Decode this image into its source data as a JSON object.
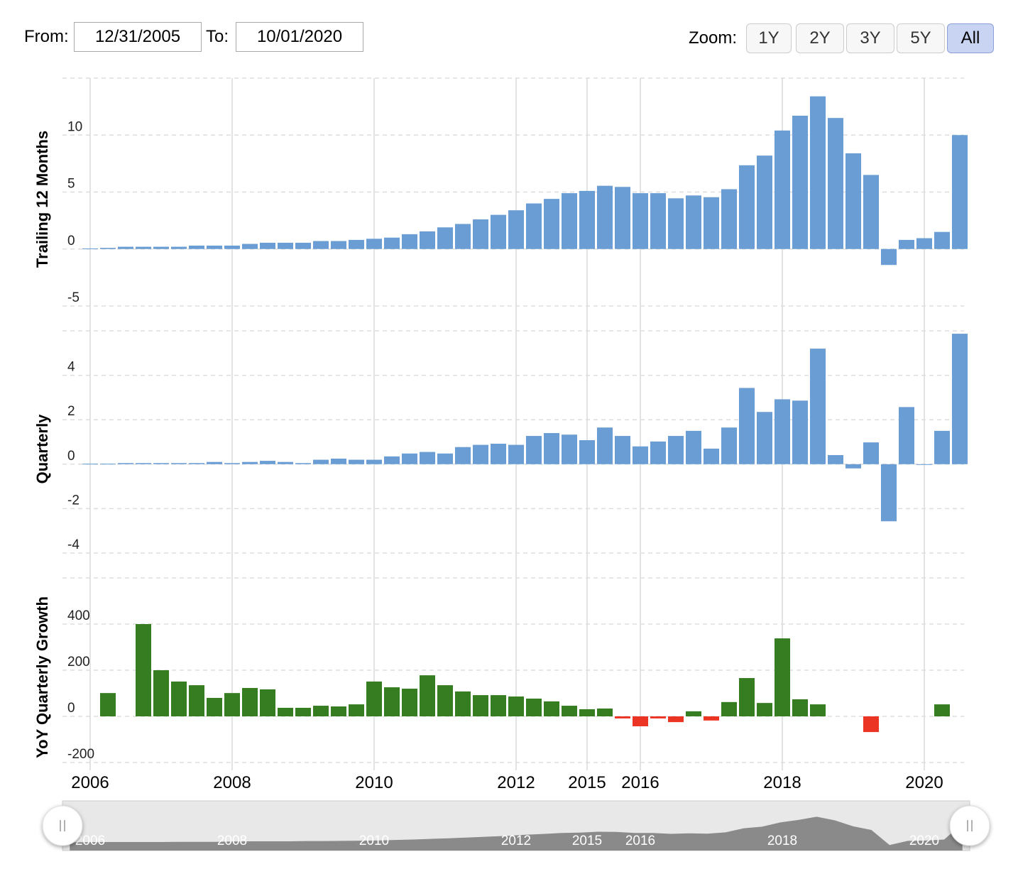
{
  "controls": {
    "from_label": "From:",
    "from": "12/31/2005",
    "to_label": "To:",
    "to": "10/01/2020",
    "zoom_label": "Zoom:",
    "zoom": [
      "1Y",
      "2Y",
      "3Y",
      "5Y",
      "All"
    ],
    "zoom_selected": "All"
  },
  "chart_data": [
    {
      "type": "bar",
      "ylabel": "Trailing 12 Months",
      "color": "#6a9dd3",
      "ylim": [
        -5,
        15
      ],
      "yticks": [
        -5,
        0,
        5,
        10
      ],
      "grid": true,
      "values": [
        0.05,
        0.1,
        0.2,
        0.2,
        0.2,
        0.2,
        0.3,
        0.3,
        0.3,
        0.45,
        0.55,
        0.55,
        0.55,
        0.7,
        0.7,
        0.8,
        0.9,
        1.0,
        1.3,
        1.55,
        1.9,
        2.2,
        2.6,
        3.0,
        3.4,
        4.0,
        4.4,
        4.9,
        5.1,
        5.55,
        5.45,
        4.9,
        4.9,
        4.45,
        4.7,
        4.55,
        5.25,
        7.35,
        8.2,
        10.4,
        11.7,
        13.4,
        11.5,
        8.4,
        6.5,
        -1.4,
        0.8,
        0.95,
        1.5,
        10.0
      ]
    },
    {
      "type": "bar",
      "ylabel": "Quarterly",
      "color": "#6a9dd3",
      "ylim": [
        -4,
        6
      ],
      "yticks": [
        -4,
        -2,
        0,
        2,
        4
      ],
      "grid": true,
      "values": [
        0.02,
        0.02,
        0.05,
        0.05,
        0.05,
        0.05,
        0.05,
        0.1,
        0.05,
        0.1,
        0.15,
        0.1,
        0.05,
        0.2,
        0.25,
        0.2,
        0.2,
        0.35,
        0.48,
        0.55,
        0.48,
        0.77,
        0.87,
        0.92,
        0.87,
        1.27,
        1.4,
        1.33,
        1.08,
        1.65,
        1.27,
        0.8,
        1.02,
        1.27,
        1.5,
        0.7,
        1.65,
        3.43,
        2.35,
        2.92,
        2.86,
        5.2,
        0.41,
        -0.19,
        0.98,
        -2.57,
        2.57,
        -0.02,
        1.5,
        5.87
      ]
    },
    {
      "type": "bar",
      "ylabel": "YoY Quarterly Growth",
      "color": "#367c21",
      "negative_color": "#ec3424",
      "ylim": [
        -200,
        600
      ],
      "yticks": [
        -200,
        0,
        200,
        400
      ],
      "grid": true,
      "categories": [
        "2006",
        null,
        null,
        null,
        null,
        null,
        null,
        null,
        "2008",
        null,
        null,
        null,
        null,
        null,
        null,
        null,
        "2010",
        null,
        null,
        null,
        null,
        null,
        null,
        null,
        "2012",
        null,
        null,
        null,
        "2015",
        null,
        null,
        "2016",
        null,
        null,
        null,
        null,
        null,
        null,
        null,
        "2018",
        null,
        null,
        null,
        null,
        null,
        null,
        null,
        "2020",
        null,
        null
      ],
      "values": [
        null,
        101,
        null,
        400,
        200,
        151,
        135,
        80,
        101,
        123,
        117,
        37,
        37,
        46,
        43,
        52,
        151,
        126,
        120,
        178,
        135,
        108,
        92,
        92,
        86,
        77,
        65,
        46,
        31,
        34,
        -9,
        -43,
        -9,
        -25,
        22,
        -18,
        62,
        166,
        58,
        338,
        74,
        52,
        null,
        null,
        -68,
        null,
        null,
        null,
        52,
        null
      ]
    }
  ]
}
